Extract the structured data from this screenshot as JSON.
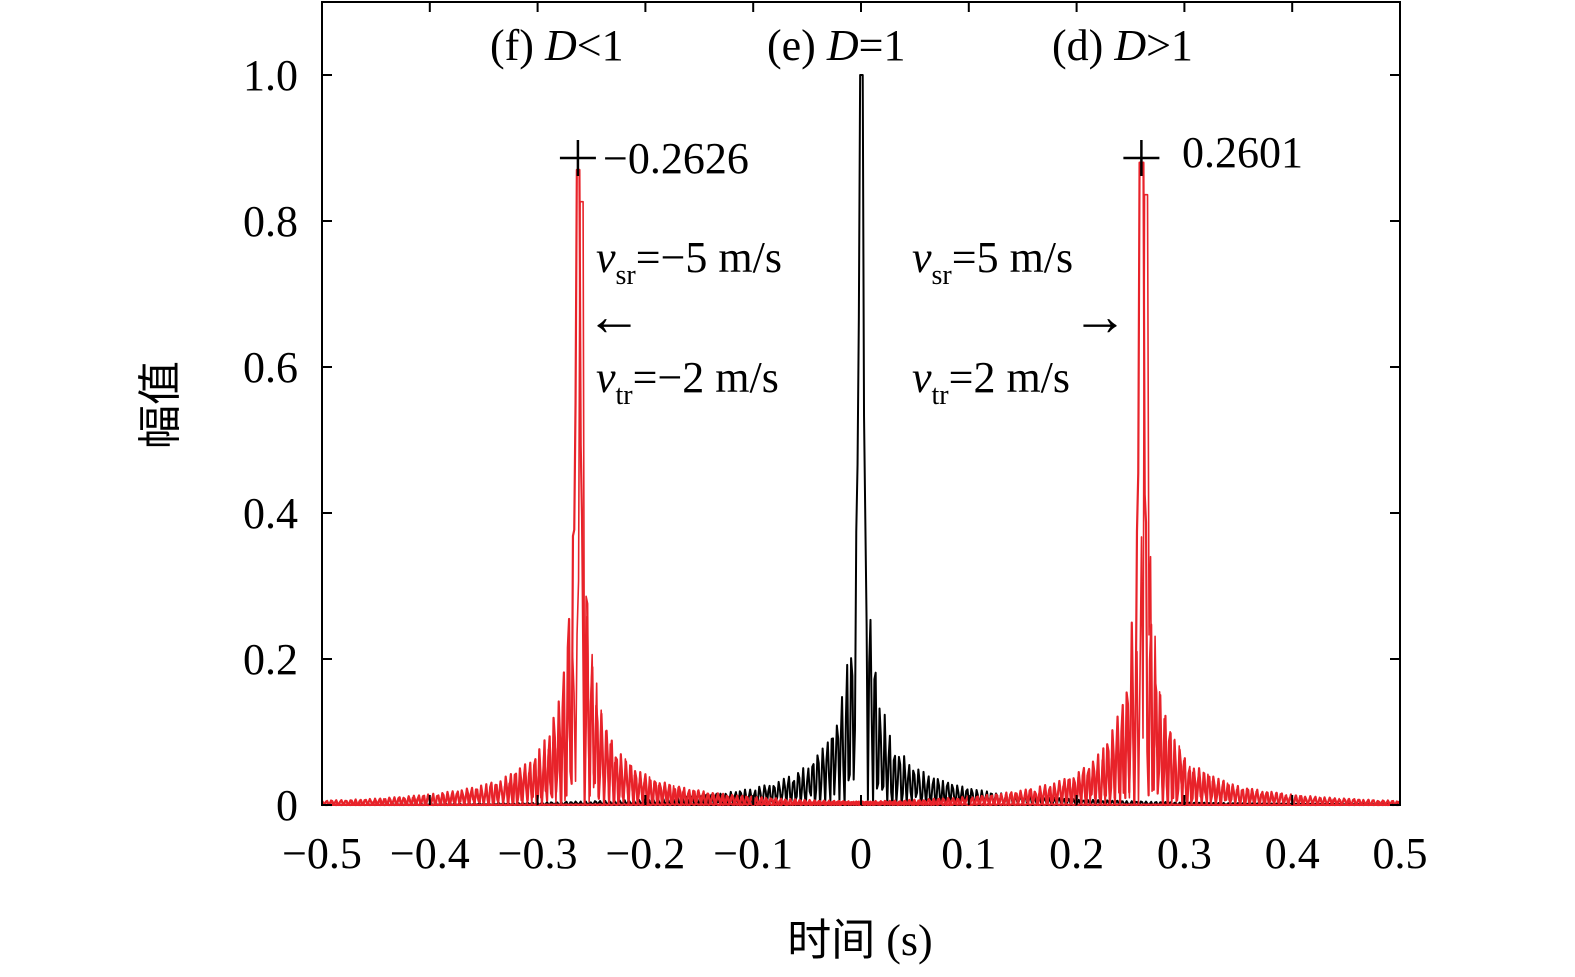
{
  "chart_data": {
    "type": "line",
    "xlabel": "时间 (s)",
    "ylabel": "幅值",
    "xlim": [
      -0.5,
      0.5
    ],
    "ylim": [
      0,
      1.1
    ],
    "xticks": [
      -0.5,
      -0.4,
      -0.3,
      -0.2,
      -0.1,
      0,
      0.1,
      0.2,
      0.3,
      0.4,
      0.5
    ],
    "xtick_labels": [
      "−0.5",
      "−0.4",
      "−0.3",
      "−0.2",
      "−0.1",
      "0",
      "0.1",
      "0.2",
      "0.3",
      "0.4",
      "0.5"
    ],
    "yticks": [
      0,
      0.2,
      0.4,
      0.6,
      0.8,
      1.0
    ],
    "ytick_labels": [
      "0",
      "0.2",
      "0.4",
      "0.6",
      "0.8",
      "1.0"
    ],
    "grid": false,
    "series": [
      {
        "color": "#000000",
        "peak_x": 0,
        "peak_y": 1.0
      },
      {
        "color": "#e8232a",
        "peak_x": -0.2626,
        "peak_y": 0.87
      },
      {
        "color": "#e8232a",
        "peak_x": 0.2601,
        "peak_y": 0.88
      }
    ],
    "labels": {
      "f_prefix": "(f) ",
      "f_var": "D",
      "f_rel": "<1",
      "e_prefix": "(e) ",
      "e_var": "D",
      "e_rel": "=1",
      "d_prefix": "(d) ",
      "d_var": "D",
      "d_rel": ">1"
    },
    "peak_annotations": {
      "left": {
        "x": -0.2626,
        "y": 0.9,
        "text": "−0.2626"
      },
      "right": {
        "x": 0.2601,
        "y": 0.9,
        "text": "0.2601"
      }
    },
    "velocity_annotations": {
      "left_vsr": {
        "var": "v",
        "sub": "sr",
        "val": "=−5 m/s"
      },
      "left_vtr": {
        "var": "v",
        "sub": "tr",
        "val": "=−2 m/s"
      },
      "right_vsr": {
        "var": "v",
        "sub": "sr",
        "val": "=5 m/s"
      },
      "right_vtr": {
        "var": "v",
        "sub": "tr",
        "val": "=2 m/s"
      }
    },
    "arrows": {
      "left": "←",
      "right": "→"
    }
  }
}
